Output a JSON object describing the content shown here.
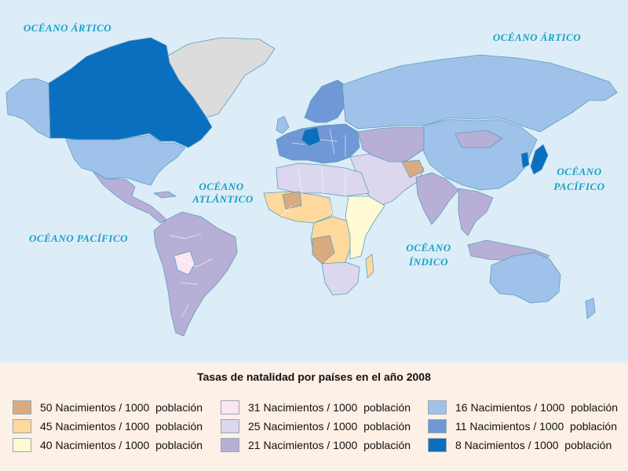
{
  "map": {
    "oceans": {
      "arctic_left": "OCÉANO ÁRTICO",
      "arctic_right": "OCÉANO ÁRTICO",
      "atlantic_line1": "OCÉANO",
      "atlantic_line2": "ATLÁNTICO",
      "pacific_left": "OCÉANO PACÍFICO",
      "pacific_right_line1": "OCÉANO",
      "pacific_right_line2": "PACÍFICO",
      "indian_line1": "OCÉANO",
      "indian_line2": "ÍNDICO"
    },
    "colors": {
      "ocean": "#dcedf8",
      "no_data": "#dcdcdc",
      "rate_50": "#d8ab80",
      "rate_45": "#ffd89e",
      "rate_40": "#fffad4",
      "rate_31": "#fbe6f2",
      "rate_25": "#dcd6ee",
      "rate_21": "#b8afd6",
      "rate_16": "#9fc2ea",
      "rate_11": "#7097d6",
      "rate_8": "#0a6fbf"
    }
  },
  "legend": {
    "title": "Tasas de natalidad por países en el año 2008",
    "items": [
      {
        "label": "50 Nacimientos / 1000  población",
        "color": "#d8ab80"
      },
      {
        "label": "45 Nacimientos / 1000  población",
        "color": "#ffd89e"
      },
      {
        "label": "40 Nacimientos / 1000  población",
        "color": "#fffad4"
      },
      {
        "label": "31 Nacimientos / 1000  población",
        "color": "#fbe6f2"
      },
      {
        "label": "25 Nacimientos / 1000  población",
        "color": "#dcd6ee"
      },
      {
        "label": "21 Nacimientos / 1000  población",
        "color": "#b8afd6"
      },
      {
        "label": "16 Nacimientos / 1000  población",
        "color": "#9fc2ea"
      },
      {
        "label": "11 Nacimientos / 1000  población",
        "color": "#7097d6"
      },
      {
        "label": "8 Nacimientos / 1000  población",
        "color": "#0a6fbf"
      }
    ]
  }
}
